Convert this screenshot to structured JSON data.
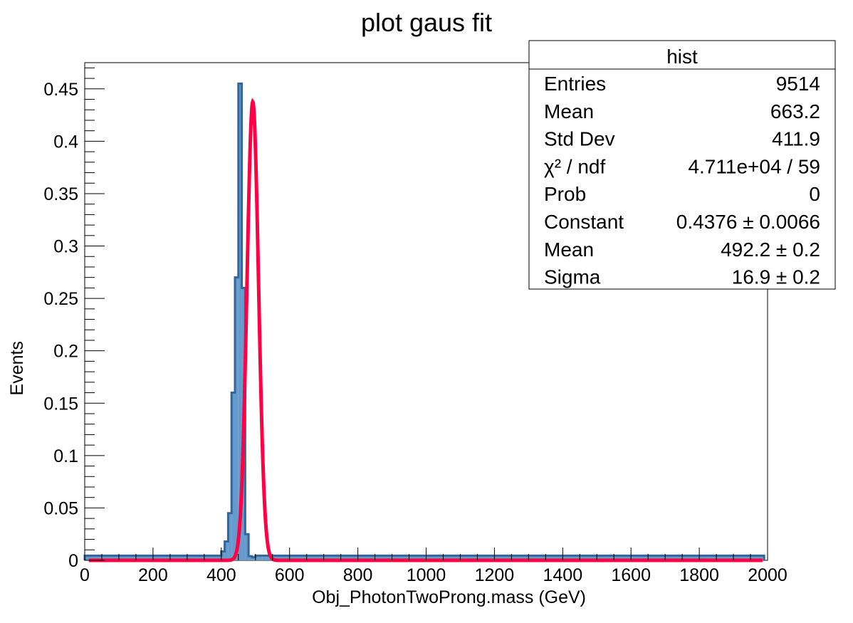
{
  "chart_data": {
    "type": "bar",
    "title": "plot gaus fit",
    "xlabel": "Obj_PhotonTwoProng.mass (GeV)",
    "ylabel": "Events",
    "xlim": [
      0,
      2000
    ],
    "ylim": [
      0,
      0.475
    ],
    "grid": false,
    "x_ticks": [
      "0",
      "200",
      "400",
      "600",
      "800",
      "1000",
      "1200",
      "1400",
      "1600",
      "1800",
      "2000"
    ],
    "y_ticks": [
      "0",
      "0.05",
      "0.1",
      "0.15",
      "0.2",
      "0.25",
      "0.3",
      "0.35",
      "0.4",
      "0.45"
    ],
    "histogram": {
      "name": "hist",
      "bin_edges": [
        0,
        400,
        410,
        420,
        430,
        440,
        450,
        460,
        470,
        480,
        490,
        500,
        510,
        520,
        530,
        540,
        1990
      ],
      "values": [
        0.0045,
        0.0085,
        0.018,
        0.045,
        0.16,
        0.27,
        0.455,
        0.26,
        0.025,
        0.004,
        0.003,
        0.0045,
        0.0045,
        0.0045,
        0.0045,
        0.0045
      ],
      "fill_color": "#6699cc",
      "line_color": "#336699"
    },
    "fit": {
      "function": "gaus",
      "color": "#ff0044",
      "constant": 0.4376,
      "mean": 492.2,
      "sigma": 16.9
    }
  },
  "stats_box": {
    "title": "hist",
    "rows": [
      {
        "label": "Entries",
        "value": "9514"
      },
      {
        "label": "Mean",
        "value": "663.2"
      },
      {
        "label": "Std Dev",
        "value": "411.9"
      },
      {
        "label": "χ² / ndf",
        "value": "4.711e+04 / 59"
      },
      {
        "label": "Prob",
        "value": "0"
      },
      {
        "label": "Constant",
        "value": "0.4376 ± 0.0066"
      },
      {
        "label": "Mean",
        "value": "492.2 ± 0.2"
      },
      {
        "label": "Sigma",
        "value": "16.9 ± 0.2"
      }
    ]
  }
}
